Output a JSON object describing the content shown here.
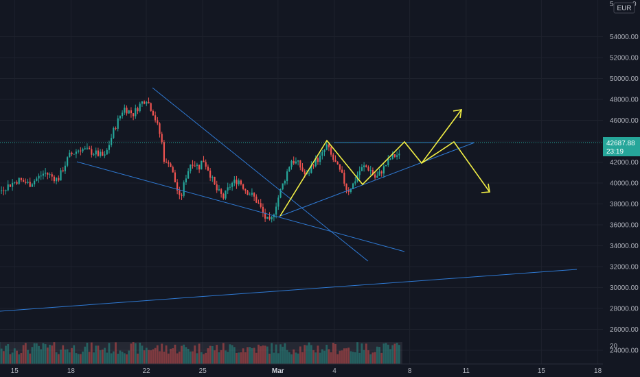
{
  "chart_data": {
    "type": "candlestick",
    "currency": "EUR",
    "last_price": "42687.88",
    "countdown": "23:19",
    "ylim": [
      24000,
      56000
    ],
    "y_ticks": [
      "24000.00",
      "26000.00",
      "28000.00",
      "30000.00",
      "32000.00",
      "34000.00",
      "36000.00",
      "38000.00",
      "40000.00",
      "42000.00",
      "44000.00",
      "46000.00",
      "48000.00",
      "50000.00",
      "52000.00",
      "54000.00"
    ],
    "y_tick_values": [
      24000,
      26000,
      28000,
      30000,
      32000,
      34000,
      36000,
      38000,
      40000,
      42000,
      44000,
      46000,
      48000,
      50000,
      52000,
      54000
    ],
    "top_partial_label_left": "5",
    "top_partial_label_right": "0",
    "volume_axis_label": "20",
    "x_ticks": [
      {
        "label": "15",
        "day": 15,
        "bold": false
      },
      {
        "label": "18",
        "day": 18,
        "bold": false
      },
      {
        "label": "22",
        "day": 22,
        "bold": false
      },
      {
        "label": "25",
        "day": 25,
        "bold": false
      },
      {
        "label": "Mar",
        "day": 29,
        "bold": true
      },
      {
        "label": "4",
        "day": 32,
        "bold": false
      },
      {
        "label": "8",
        "day": 36,
        "bold": false
      },
      {
        "label": "11",
        "day": 39,
        "bold": false
      },
      {
        "label": "15",
        "day": 43,
        "bold": false
      },
      {
        "label": "18",
        "day": 46,
        "bold": false
      }
    ],
    "price_anchors": [
      [
        11.5,
        38600
      ],
      [
        12.0,
        39200
      ],
      [
        12.8,
        40800
      ],
      [
        13.3,
        39800
      ],
      [
        13.8,
        38600
      ],
      [
        14.5,
        39600
      ],
      [
        15.2,
        40300
      ],
      [
        15.8,
        39900
      ],
      [
        16.6,
        41000
      ],
      [
        17.3,
        40300
      ],
      [
        17.9,
        42600
      ],
      [
        18.5,
        43300
      ],
      [
        19.2,
        42900
      ],
      [
        19.8,
        42500
      ],
      [
        20.3,
        45200
      ],
      [
        20.8,
        47200
      ],
      [
        21.3,
        46600
      ],
      [
        21.7,
        47600
      ],
      [
        22.0,
        48100
      ],
      [
        22.4,
        46600
      ],
      [
        22.8,
        44200
      ],
      [
        23.0,
        41600
      ],
      [
        23.2,
        42200
      ],
      [
        23.5,
        40300
      ],
      [
        23.8,
        38300
      ],
      [
        24.1,
        40600
      ],
      [
        24.4,
        42100
      ],
      [
        24.8,
        41500
      ],
      [
        25.0,
        42300
      ],
      [
        25.3,
        41300
      ],
      [
        25.7,
        39400
      ],
      [
        26.1,
        38600
      ],
      [
        26.5,
        39900
      ],
      [
        26.9,
        40300
      ],
      [
        27.3,
        39300
      ],
      [
        27.7,
        38700
      ],
      [
        28.0,
        37900
      ],
      [
        28.3,
        36700
      ],
      [
        28.6,
        36100
      ],
      [
        28.9,
        38000
      ],
      [
        29.3,
        40100
      ],
      [
        29.7,
        42200
      ],
      [
        30.1,
        41800
      ],
      [
        30.5,
        40600
      ],
      [
        30.9,
        42000
      ],
      [
        31.3,
        42500
      ],
      [
        31.6,
        43600
      ],
      [
        31.8,
        42700
      ],
      [
        32.1,
        41700
      ],
      [
        32.4,
        40700
      ],
      [
        32.7,
        39200
      ],
      [
        33.0,
        39900
      ],
      [
        33.3,
        41100
      ],
      [
        33.6,
        41600
      ],
      [
        33.9,
        41300
      ],
      [
        34.2,
        40400
      ],
      [
        34.6,
        41400
      ],
      [
        35.0,
        42400
      ],
      [
        35.3,
        42700
      ],
      [
        35.5,
        42500
      ]
    ],
    "volume_range": {
      "start_day": 11.5,
      "end_day": 35.5
    }
  }
}
